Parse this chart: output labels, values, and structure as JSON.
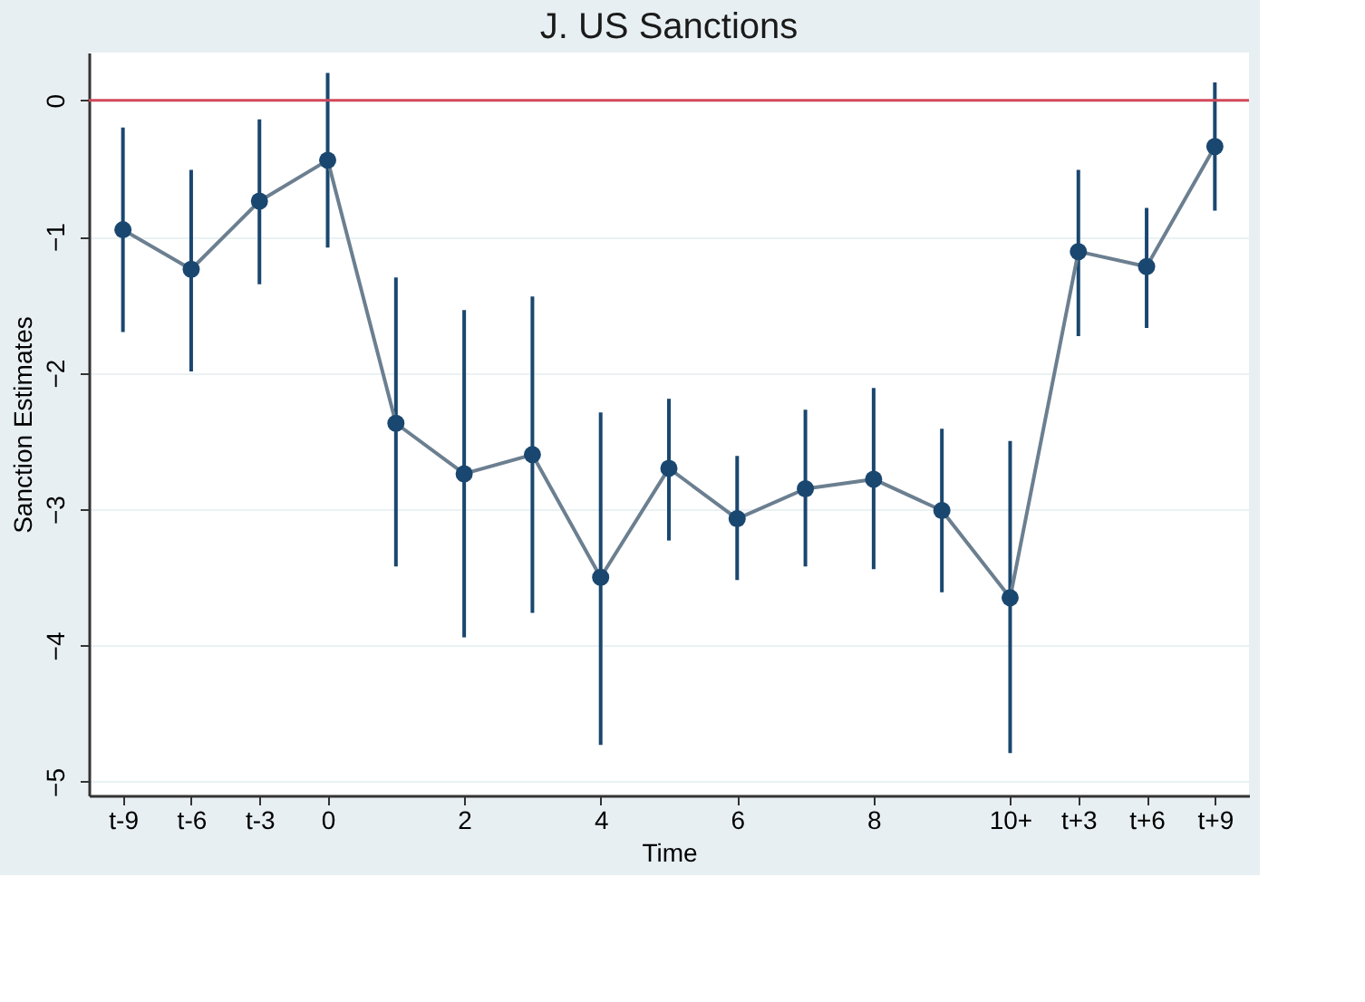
{
  "chart_data": {
    "type": "line",
    "title": "J. US Sanctions",
    "xlabel": "Time",
    "ylabel": "Sanction Estimates",
    "categories": [
      "t-9",
      "t-6",
      "t-3",
      "0",
      null,
      "2",
      null,
      "4",
      null,
      "6",
      null,
      "8",
      null,
      "10+",
      "t+3",
      "t+6",
      "t+9"
    ],
    "series": [
      {
        "color": "#1a476f",
        "values": [
          -0.95,
          -1.24,
          -0.74,
          -0.44,
          -2.37,
          -2.74,
          -2.6,
          -3.5,
          -2.7,
          -3.07,
          -2.85,
          -2.78,
          -3.01,
          -3.65,
          -1.11,
          -1.22,
          -0.34
        ],
        "errors": [
          [
            -1.7,
            -0.2
          ],
          [
            -1.99,
            -0.51
          ],
          [
            -1.35,
            -0.14
          ],
          [
            -1.08,
            0.2
          ],
          [
            -3.42,
            -1.3
          ],
          [
            -3.94,
            -1.54
          ],
          [
            -3.76,
            -1.44
          ],
          [
            -4.73,
            -2.29
          ],
          [
            -3.23,
            -2.19
          ],
          [
            -3.52,
            -2.61
          ],
          [
            -3.42,
            -2.27
          ],
          [
            -3.44,
            -2.11
          ],
          [
            -3.61,
            -2.41
          ],
          [
            -4.79,
            -2.5
          ],
          [
            -1.73,
            -0.51
          ],
          [
            -1.67,
            -0.79
          ],
          [
            -0.81,
            0.13
          ]
        ]
      }
    ],
    "ylim": [
      -5.1,
      0.35
    ],
    "yticks": [
      -5,
      -4,
      -3,
      -2,
      -1,
      0
    ],
    "ref_lines": [
      {
        "axis": "y",
        "value": 0,
        "color": "#d1495b"
      }
    ],
    "grid": "y",
    "marker": "circle",
    "line_style": "solid"
  }
}
